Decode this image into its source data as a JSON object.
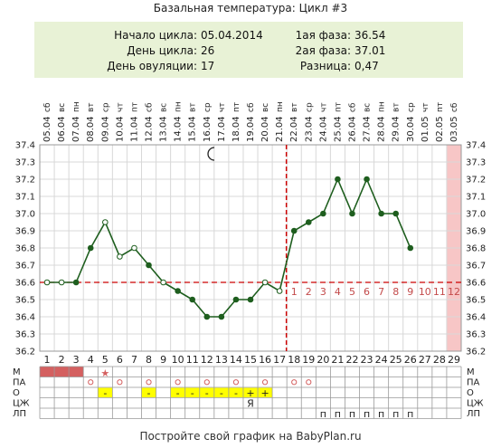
{
  "title": "Базальная температура: Цикл #3",
  "info": {
    "start_label": "Начало цикла:",
    "start_value": "05.04.2014",
    "day_label": "День цикла:",
    "day_value": "26",
    "ovulation_label": "День овуляции:",
    "ovulation_value": "17",
    "phase1_label": "1ая фаза:",
    "phase1_value": "36.54",
    "phase2_label": "2ая фаза:",
    "phase2_value": "37.01",
    "diff_label": "Разница:",
    "diff_value": "0,47"
  },
  "footer": "Постройте свой график на BabyPlan.ru",
  "colors": {
    "line": "#1e5e1e",
    "marker": "#1e5e1e",
    "coverline": "#cc0000",
    "ovulation": "#cc0000",
    "info_bg": "#e8f2d6",
    "grid": "#d8d8d8",
    "menses": "#d46060",
    "yellow": "#ffff00",
    "highlight": "#f7c6c6",
    "after_numbers": "#c34a4a"
  },
  "chart_data": {
    "type": "line",
    "title": "Базальная температура: Цикл #3",
    "days": [
      1,
      2,
      3,
      4,
      5,
      6,
      7,
      8,
      9,
      10,
      11,
      12,
      13,
      14,
      15,
      16,
      17,
      18,
      19,
      20,
      21,
      22,
      23,
      24,
      25,
      26,
      27,
      28,
      29
    ],
    "dates": [
      "05.04",
      "06.04",
      "07.04",
      "08.04",
      "09.04",
      "10.04",
      "11.04",
      "12.04",
      "13.04",
      "14.04",
      "15.04",
      "16.04",
      "17.04",
      "18.04",
      "19.04",
      "20.04",
      "21.04",
      "22.04",
      "23.04",
      "24.04",
      "25.04",
      "26.04",
      "27.04",
      "28.04",
      "29.04",
      "30.04",
      "01.05",
      "02.05",
      "03.05"
    ],
    "weekdays": [
      "сб",
      "вс",
      "пн",
      "вт",
      "ср",
      "чт",
      "пт",
      "сб",
      "вс",
      "пн",
      "вт",
      "ср",
      "чт",
      "пт",
      "сб",
      "вс",
      "пн",
      "вт",
      "ср",
      "чт",
      "пт",
      "сб",
      "вс",
      "пн",
      "вт",
      "ср",
      "чт",
      "пт",
      "сб"
    ],
    "temperatures": [
      36.6,
      36.6,
      36.6,
      36.8,
      36.95,
      36.75,
      36.8,
      36.7,
      36.6,
      36.55,
      36.5,
      36.4,
      36.4,
      36.5,
      36.5,
      36.6,
      36.55,
      36.9,
      36.95,
      37.0,
      37.2,
      37.0,
      37.2,
      37.0,
      37.0,
      36.8,
      null,
      null,
      null
    ],
    "hollow_days": [
      1,
      2,
      5,
      6,
      7,
      9,
      16,
      17
    ],
    "y_ticks": [
      "36.2",
      "36.3",
      "36.4",
      "36.5",
      "36.6",
      "36.7",
      "36.8",
      "36.9",
      "37.0",
      "37.1",
      "37.2",
      "37.3",
      "37.4"
    ],
    "ylim": [
      36.2,
      37.4
    ],
    "coverline": 36.6,
    "ovulation_day": 17,
    "highlight_day": 29,
    "post_ovulation_numbers": [
      "1",
      "2",
      "3",
      "4",
      "5",
      "6",
      "7",
      "8",
      "9",
      "10",
      "11",
      "12"
    ],
    "grid": true,
    "rows": [
      {
        "label": "М",
        "cells": {
          "1": "fill",
          "2": "fill",
          "3": "fill",
          "5": "star"
        }
      },
      {
        "label": "ПА",
        "cells": {
          "4": "o",
          "6": "o",
          "8": "o",
          "10": "o",
          "12": "o",
          "14": "o",
          "16": "o",
          "18": "o",
          "19": "o"
        }
      },
      {
        "label": "О",
        "cells": {
          "5": "-",
          "8": "-",
          "10": "-",
          "11": "-",
          "12": "-",
          "13": "-",
          "14": "-",
          "15": "+",
          "16": "+"
        }
      },
      {
        "label": "ЦЖ",
        "cells": {
          "15": "Я"
        }
      },
      {
        "label": "ЛП",
        "cells": {
          "20": "п",
          "21": "п",
          "22": "п",
          "23": "п",
          "24": "п",
          "25": "п",
          "26": "п"
        }
      }
    ]
  }
}
